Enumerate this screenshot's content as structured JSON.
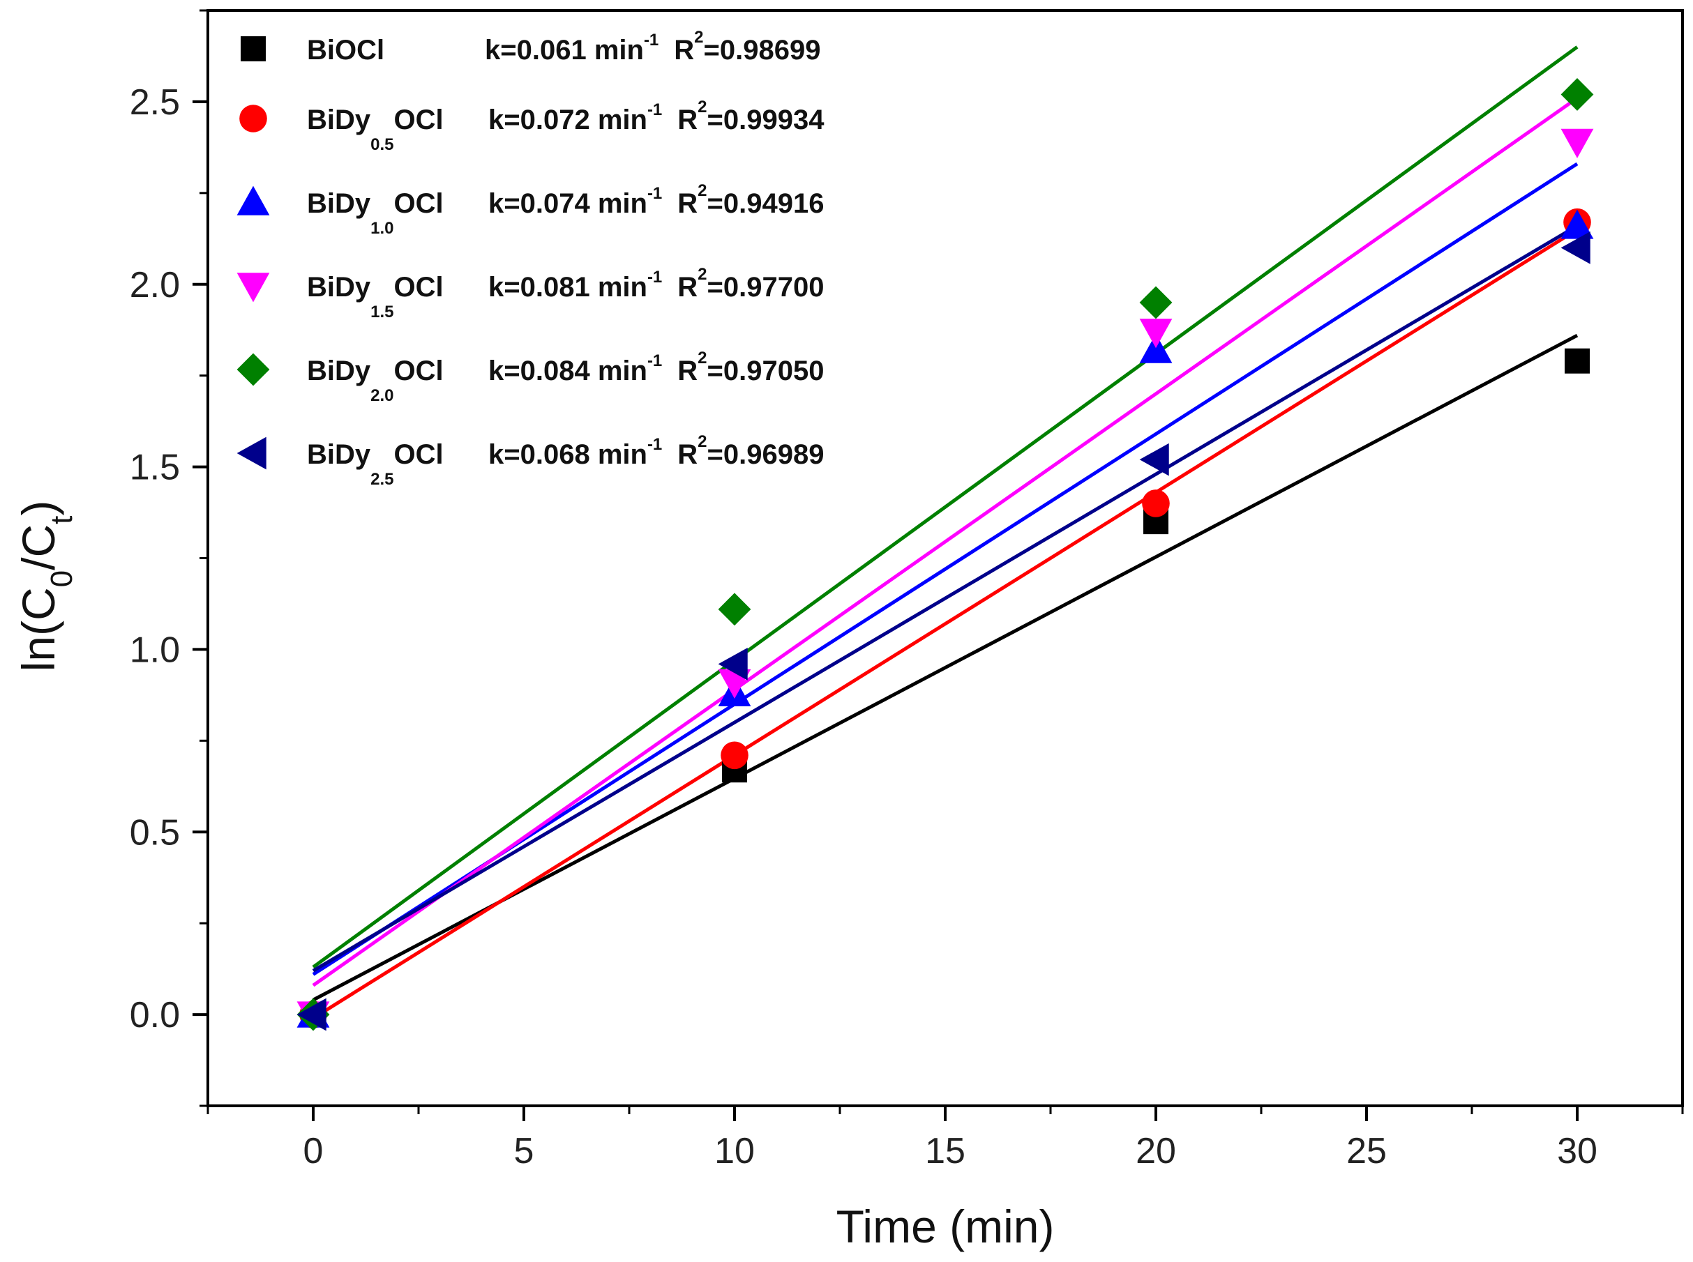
{
  "chart_data": {
    "type": "scatter",
    "xlabel": "Time (min)",
    "ylabel": "ln(C0/Ct)",
    "ylabel_parts": {
      "pre": "ln(C",
      "sub1": "0",
      "mid": "/C",
      "sub2": "t",
      "post": ")"
    },
    "xlim": [
      -2.5,
      32.5
    ],
    "ylim": [
      -0.25,
      2.75
    ],
    "xticks": [
      0,
      5,
      10,
      15,
      20,
      25,
      30
    ],
    "yticks": [
      0.0,
      0.5,
      1.0,
      1.5,
      2.0,
      2.5
    ],
    "xtick_labels": [
      "0",
      "5",
      "10",
      "15",
      "20",
      "25",
      "30"
    ],
    "ytick_labels": [
      "0.0",
      "0.5",
      "1.0",
      "1.5",
      "2.0",
      "2.5"
    ],
    "legend_position": "top-left",
    "series": [
      {
        "name": "BiOCl",
        "name_parts": {
          "pre": "BiOCl",
          "sub": "",
          "post": ""
        },
        "marker": "square",
        "color": "#000000",
        "k_label": "k=0.061 min",
        "r2_label": "=0.98699",
        "x": [
          0,
          10,
          20,
          30
        ],
        "y": [
          0.0,
          0.67,
          1.35,
          1.79
        ],
        "fit": {
          "x0": 0,
          "y0": 0.04,
          "x1": 30,
          "y1": 1.86
        }
      },
      {
        "name": "BiDy0.5OCl",
        "name_parts": {
          "pre": "BiDy",
          "sub": "0.5",
          "post": "OCl"
        },
        "marker": "circle",
        "color": "#ff0000",
        "k_label": "k=0.072 min",
        "r2_label": "=0.99934",
        "x": [
          0,
          10,
          20,
          30
        ],
        "y": [
          0.0,
          0.71,
          1.4,
          2.17
        ],
        "fit": {
          "x0": 0,
          "y0": -0.01,
          "x1": 30,
          "y1": 2.15
        }
      },
      {
        "name": "BiDy1.0OCl",
        "name_parts": {
          "pre": "BiDy",
          "sub": "1.0",
          "post": "OCl"
        },
        "marker": "triangle-up",
        "color": "#0000ff",
        "k_label": "k=0.074 min",
        "r2_label": "=0.94916",
        "x": [
          0,
          10,
          20,
          30
        ],
        "y": [
          0.0,
          0.88,
          1.82,
          2.16
        ],
        "fit": {
          "x0": 0,
          "y0": 0.11,
          "x1": 30,
          "y1": 2.33
        }
      },
      {
        "name": "BiDy1.5OCl",
        "name_parts": {
          "pre": "BiDy",
          "sub": "1.5",
          "post": "OCl"
        },
        "marker": "triangle-down",
        "color": "#ff00ff",
        "k_label": "k=0.081 min",
        "r2_label": "=0.97700",
        "x": [
          0,
          10,
          20,
          30
        ],
        "y": [
          0.0,
          0.91,
          1.87,
          2.39
        ],
        "fit": {
          "x0": 0,
          "y0": 0.08,
          "x1": 30,
          "y1": 2.51
        }
      },
      {
        "name": "BiDy2.0OCl",
        "name_parts": {
          "pre": "BiDy",
          "sub": "2.0",
          "post": "OCl"
        },
        "marker": "diamond",
        "color": "#008000",
        "k_label": "k=0.084 min",
        "r2_label": "=0.97050",
        "x": [
          0,
          10,
          20,
          30
        ],
        "y": [
          0.0,
          1.11,
          1.95,
          2.52
        ],
        "fit": {
          "x0": 0,
          "y0": 0.13,
          "x1": 30,
          "y1": 2.65
        }
      },
      {
        "name": "BiDy2.5OCl",
        "name_parts": {
          "pre": "BiDy",
          "sub": "2.5",
          "post": "OCl"
        },
        "marker": "triangle-left",
        "color": "#00008b",
        "k_label": "k=0.068 min",
        "r2_label": "=0.96989",
        "x": [
          0,
          10,
          20,
          30
        ],
        "y": [
          0.0,
          0.96,
          1.52,
          2.1
        ],
        "fit": {
          "x0": 0,
          "y0": 0.12,
          "x1": 30,
          "y1": 2.16
        }
      }
    ],
    "legend_common": {
      "min_sup": "-1",
      "r2_prefix": "R",
      "r2_sup": "2"
    }
  }
}
